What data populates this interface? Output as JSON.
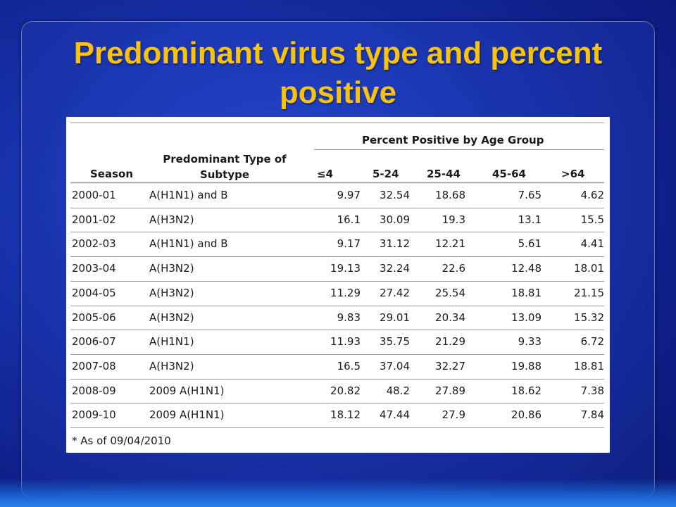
{
  "slide": {
    "title": "Predominant virus type and percent positive"
  },
  "table": {
    "group_header": "Percent Positive by Age Group",
    "col_season": "Season",
    "col_type": "Predominant Type of Subtype",
    "age_groups": [
      "≤4",
      "5-24",
      "25-44",
      "45-64",
      ">64"
    ],
    "rows": [
      {
        "season": "2000-01",
        "type": "A(H1N1) and B",
        "values": [
          "9.97",
          "32.54",
          "18.68",
          "7.65",
          "4.62"
        ]
      },
      {
        "season": "2001-02",
        "type": "A(H3N2)",
        "values": [
          "16.1",
          "30.09",
          "19.3",
          "13.1",
          "15.5"
        ]
      },
      {
        "season": "2002-03",
        "type": "A(H1N1) and B",
        "values": [
          "9.17",
          "31.12",
          "12.21",
          "5.61",
          "4.41"
        ]
      },
      {
        "season": "2003-04",
        "type": "A(H3N2)",
        "values": [
          "19.13",
          "32.24",
          "22.6",
          "12.48",
          "18.01"
        ]
      },
      {
        "season": "2004-05",
        "type": "A(H3N2)",
        "values": [
          "11.29",
          "27.42",
          "25.54",
          "18.81",
          "21.15"
        ]
      },
      {
        "season": "2005-06",
        "type": "A(H3N2)",
        "values": [
          "9.83",
          "29.01",
          "20.34",
          "13.09",
          "15.32"
        ]
      },
      {
        "season": "2006-07",
        "type": "A(H1N1)",
        "values": [
          "11.93",
          "35.75",
          "21.29",
          "9.33",
          "6.72"
        ]
      },
      {
        "season": "2007-08",
        "type": "A(H3N2)",
        "values": [
          "16.5",
          "37.04",
          "32.27",
          "19.88",
          "18.81"
        ]
      },
      {
        "season": "2008-09",
        "type": "2009 A(H1N1)",
        "values": [
          "20.82",
          "48.2",
          "27.89",
          "18.62",
          "7.38"
        ]
      },
      {
        "season": "2009-10",
        "type": "2009 A(H1N1)",
        "values": [
          "18.12",
          "47.44",
          "27.9",
          "20.86",
          "7.84"
        ]
      }
    ],
    "footnote": "* As of 09/04/2010"
  },
  "colors": {
    "title": "#f9c20f",
    "background": "#1630a8",
    "table_bg": "#ffffff",
    "rule": "#9a9a9a"
  }
}
